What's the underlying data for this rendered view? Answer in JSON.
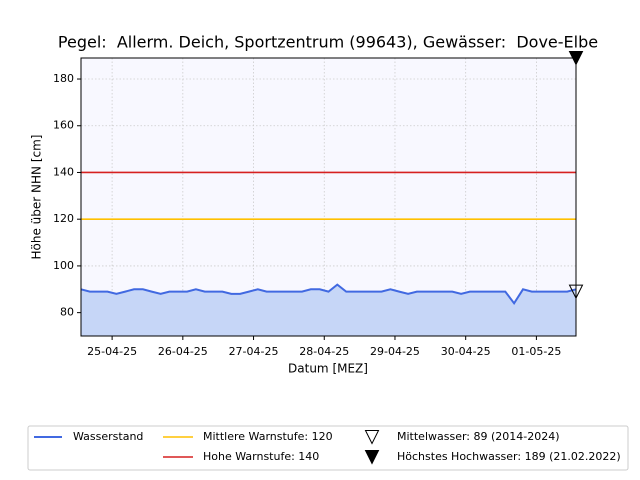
{
  "chart_data": {
    "type": "line",
    "title": "Pegel:  Allerm. Deich, Sportzentrum (99643), Gewässer:  Dove-Elbe",
    "xlabel": "Datum [MEZ]",
    "ylabel": "Höhe über NHN [cm]",
    "xlim": [
      24.56,
      31.56
    ],
    "xticks": [
      {
        "value": 25,
        "label": "25-04-25"
      },
      {
        "value": 26,
        "label": "26-04-25"
      },
      {
        "value": 27,
        "label": "27-04-25"
      },
      {
        "value": 28,
        "label": "28-04-25"
      },
      {
        "value": 29,
        "label": "29-04-25"
      },
      {
        "value": 30,
        "label": "30-04-25"
      },
      {
        "value": 31,
        "label": "01-05-25"
      }
    ],
    "ylim": [
      70,
      189
    ],
    "yticks": [
      80,
      100,
      120,
      140,
      160,
      180
    ],
    "grid": true,
    "x": [
      24.56,
      24.685,
      24.81,
      24.935,
      25.06,
      25.185,
      25.31,
      25.435,
      25.56,
      25.685,
      25.81,
      25.935,
      26.06,
      26.185,
      26.31,
      26.435,
      26.56,
      26.685,
      26.81,
      26.935,
      27.06,
      27.185,
      27.31,
      27.435,
      27.56,
      27.685,
      27.81,
      27.935,
      28.06,
      28.185,
      28.31,
      28.435,
      28.56,
      28.685,
      28.81,
      28.935,
      29.06,
      29.185,
      29.31,
      29.435,
      29.56,
      29.685,
      29.81,
      29.935,
      30.06,
      30.185,
      30.31,
      30.435,
      30.56,
      30.685,
      30.81,
      30.935,
      31.06,
      31.185,
      31.31,
      31.435,
      31.56
    ],
    "series": [
      {
        "name": "Wasserstand",
        "color": "#4169e1",
        "fill": "#c6d6f7",
        "values": [
          90,
          89,
          89,
          89,
          88,
          89,
          90,
          90,
          89,
          88,
          89,
          89,
          89,
          90,
          89,
          89,
          89,
          88,
          88,
          89,
          90,
          89,
          89,
          89,
          89,
          89,
          90,
          90,
          89,
          92,
          89,
          89,
          89,
          89,
          89,
          90,
          89,
          88,
          89,
          89,
          89,
          89,
          89,
          88,
          89,
          89,
          89,
          89,
          89,
          84,
          90,
          89,
          89,
          89,
          89,
          89,
          90
        ]
      }
    ],
    "thresholds": [
      {
        "name": "Mittlere Warnstufe: 120",
        "value": 120,
        "color": "#ffc000"
      },
      {
        "name": "Hohe Warnstufe: 140",
        "value": 140,
        "color": "#d62020"
      }
    ],
    "markers": [
      {
        "name": "Mittelwasser: 89 (2014-2024)",
        "value": 89,
        "filled": false
      },
      {
        "name": "Höchstes Hochwasser: 189 (21.02.2022)",
        "value": 189,
        "filled": true
      }
    ]
  }
}
